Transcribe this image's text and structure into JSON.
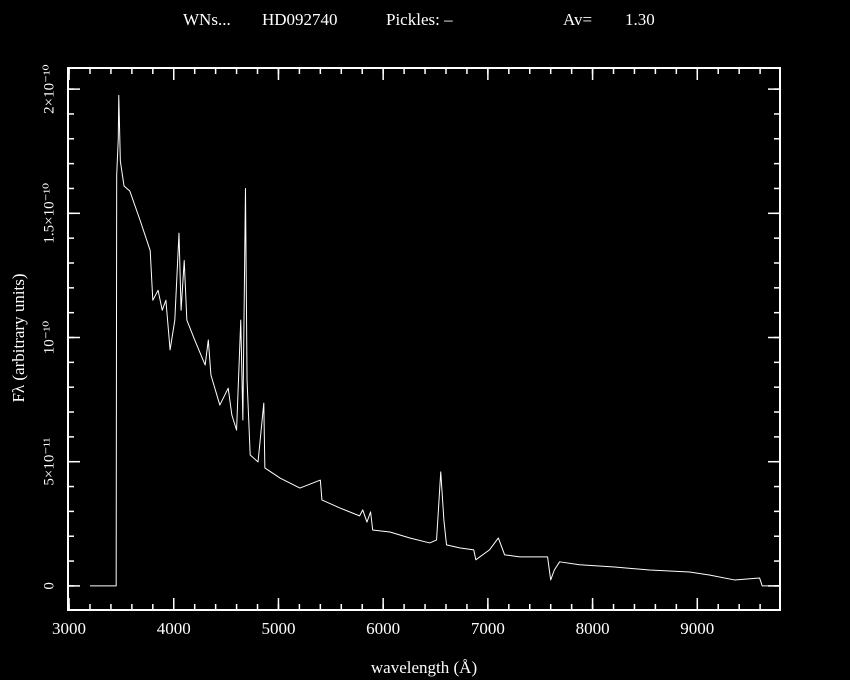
{
  "chart_data": {
    "type": "line",
    "title": "WNs...",
    "star": "HD092740",
    "pickles": "Pickles: –",
    "av_label": "Av=",
    "av_value": "1.30",
    "x_label": "wavelength (Å)",
    "y_label": "Fλ (arbitrary units)",
    "xlim": [
      2990,
      9790
    ],
    "ylim": [
      -9.7e-12,
      2.085e-10
    ],
    "xticks": [
      3000,
      4000,
      5000,
      6000,
      7000,
      8000,
      9000
    ],
    "yticks": [
      0,
      {
        "value": 5e-11,
        "label": "5×10⁻¹¹"
      },
      {
        "value": 1e-10,
        "label": "10⁻¹⁰"
      },
      {
        "value": 1.5e-10,
        "label": "1.5×10⁻¹⁰"
      },
      {
        "value": 2e-10,
        "label": "2×10⁻¹⁰"
      }
    ],
    "x": [
      3200,
      3450,
      3455,
      3470,
      3475,
      3490,
      3525,
      3580,
      3680,
      3775,
      3800,
      3850,
      3890,
      3925,
      3965,
      4010,
      4050,
      4070,
      4100,
      4125,
      4200,
      4300,
      4330,
      4355,
      4440,
      4520,
      4555,
      4600,
      4640,
      4660,
      4685,
      4700,
      4730,
      4805,
      4860,
      4870,
      5015,
      5205,
      5400,
      5415,
      5585,
      5775,
      5805,
      5845,
      5880,
      5900,
      6065,
      6255,
      6445,
      6510,
      6550,
      6580,
      6605,
      6730,
      6865,
      6885,
      7015,
      7100,
      7160,
      7305,
      7570,
      7600,
      7635,
      7685,
      7875,
      8210,
      8545,
      8925,
      9115,
      9355,
      9595,
      9620,
      9780
    ],
    "series": [
      {
        "name": "HD092740",
        "color": "#ffffff",
        "values": [
          0,
          0,
          1.653e-10,
          1.8e-10,
          1.975e-10,
          1.71e-10,
          1.61e-10,
          1.59e-10,
          1.47e-10,
          1.35e-10,
          1.15e-10,
          1.19e-10,
          1.11e-10,
          1.15e-10,
          9.5e-11,
          1.07e-10,
          1.42e-10,
          1.11e-10,
          1.31e-10,
          1.07e-10,
          9.9e-11,
          8.89e-11,
          9.9e-11,
          8.49e-11,
          7.28e-11,
          7.96e-11,
          6.88e-11,
          6.27e-11,
          1.07e-10,
          6.68e-11,
          1.6e-10,
          8.29e-11,
          5.27e-11,
          4.99e-11,
          7.36e-11,
          4.75e-11,
          4.34e-11,
          3.94e-11,
          4.26e-11,
          3.46e-11,
          3.14e-11,
          2.82e-11,
          3.06e-11,
          2.57e-11,
          2.98e-11,
          2.25e-11,
          2.17e-11,
          1.93e-11,
          1.73e-11,
          1.85e-11,
          4.59e-11,
          2.65e-11,
          1.65e-11,
          1.53e-11,
          1.45e-11,
          1.05e-11,
          1.45e-11,
          1.93e-11,
          1.25e-11,
          1.17e-11,
          1.17e-11,
          2.4e-12,
          6.4e-12,
          9.7e-12,
          8.5e-12,
          7.6e-12,
          6.4e-12,
          5.6e-12,
          4.4e-12,
          2.4e-12,
          3.2e-12,
          0,
          0
        ]
      }
    ]
  }
}
